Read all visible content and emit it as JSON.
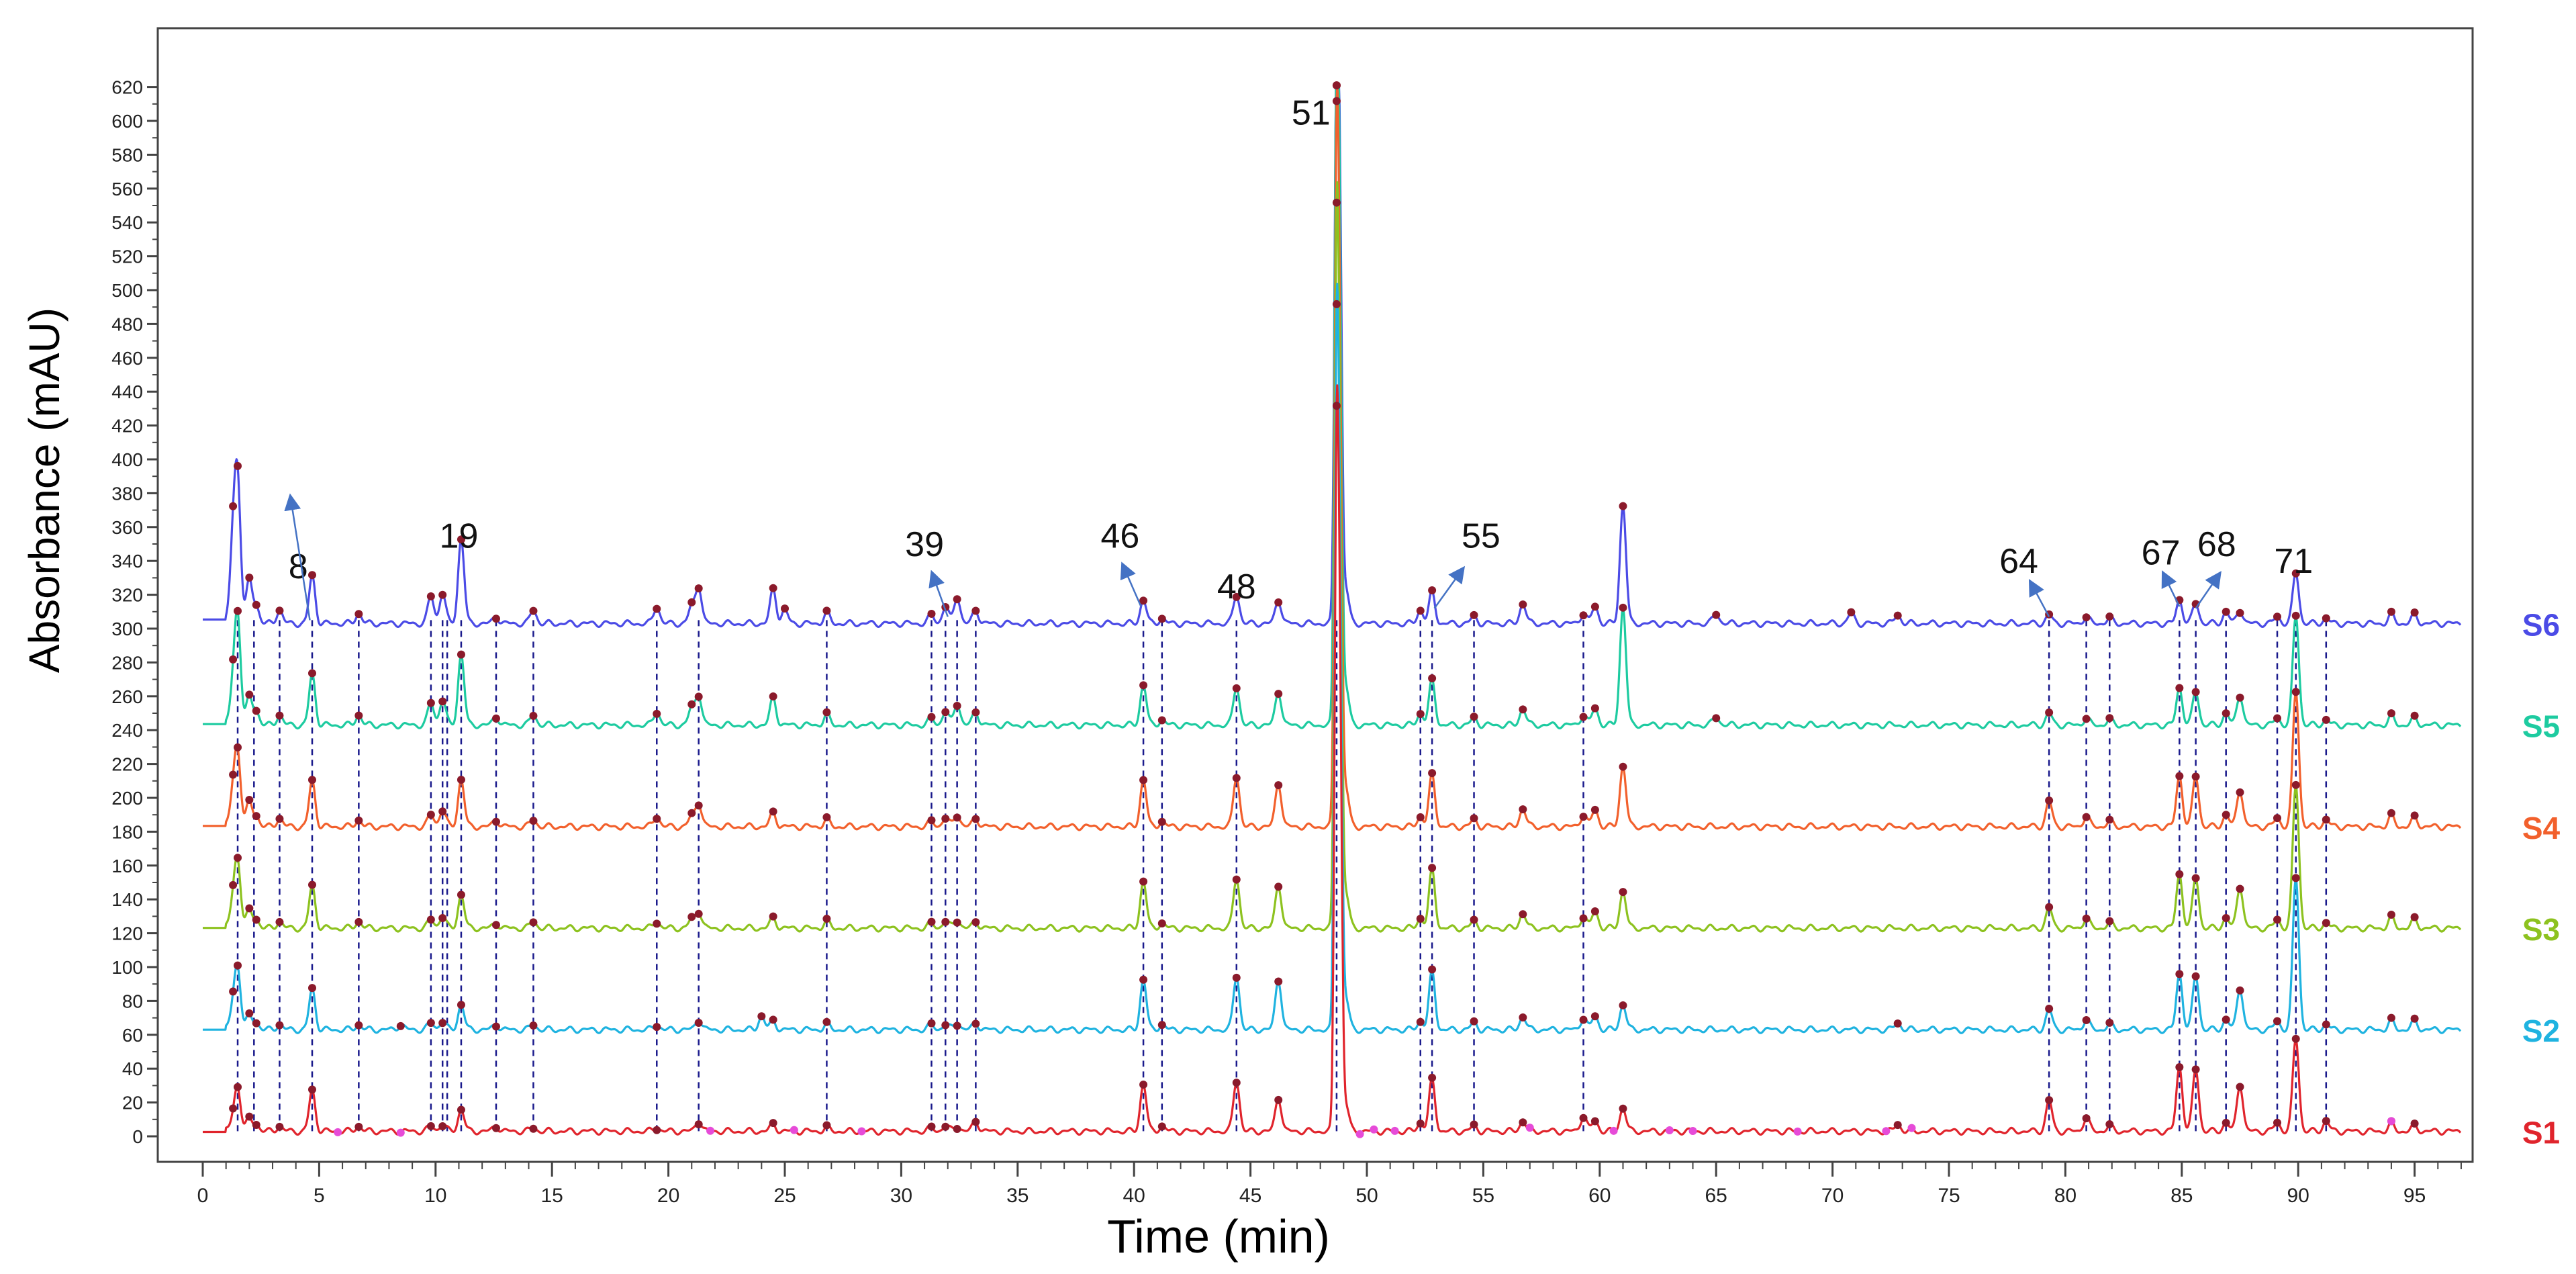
{
  "chart_data": {
    "type": "line",
    "title": "",
    "xlabel": "Time (min)",
    "ylabel": "Absorbance (mAU)",
    "xlim": [
      0,
      98
    ],
    "ylim": [
      -12,
      630
    ],
    "x_ticks": [
      0,
      5,
      10,
      15,
      20,
      25,
      30,
      35,
      40,
      45,
      50,
      55,
      60,
      65,
      70,
      75,
      80,
      85,
      90,
      95
    ],
    "y_ticks": [
      0,
      20,
      40,
      60,
      80,
      100,
      120,
      140,
      160,
      180,
      200,
      220,
      240,
      260,
      280,
      300,
      320,
      340,
      360,
      380,
      400,
      420,
      440,
      460,
      480,
      500,
      520,
      540,
      560,
      580,
      600,
      620
    ],
    "grid": false,
    "legend": "right",
    "reference_lines_x": [
      1.5,
      2.2,
      3.3,
      4.7,
      6.7,
      9.8,
      10.3,
      10.5,
      11.1,
      12.6,
      14.2,
      19.5,
      21.3,
      26.8,
      31.3,
      31.9,
      32.4,
      33.2,
      40.4,
      41.2,
      44.4,
      48.7,
      52.3,
      52.8,
      54.6,
      59.3,
      79.3,
      80.9,
      81.9,
      84.9,
      85.6,
      86.9,
      89.1,
      89.9,
      91.2
    ],
    "annotations": [
      {
        "label": "8",
        "time": 4.7,
        "arrow": true
      },
      {
        "label": "19",
        "time": 11.1,
        "arrow": false
      },
      {
        "label": "39",
        "time": 32.4,
        "arrow": true
      },
      {
        "label": "46",
        "time": 40.4,
        "arrow": true
      },
      {
        "label": "48",
        "time": 44.4,
        "arrow": false
      },
      {
        "label": "51",
        "time": 48.7,
        "arrow": false
      },
      {
        "label": "55",
        "time": 52.8,
        "arrow": true
      },
      {
        "label": "64",
        "time": 79.3,
        "arrow": true
      },
      {
        "label": "67",
        "time": 84.9,
        "arrow": true
      },
      {
        "label": "68",
        "time": 85.6,
        "arrow": true
      },
      {
        "label": "71",
        "time": 89.9,
        "arrow": false
      }
    ],
    "series": [
      {
        "name": "S6",
        "color": "#4B4BE6",
        "baseline": 303,
        "peaks": [
          [
            1.3,
            45
          ],
          [
            1.5,
            80
          ],
          [
            2.0,
            25
          ],
          [
            2.3,
            10
          ],
          [
            3.3,
            8
          ],
          [
            4.7,
            28
          ],
          [
            6.7,
            6
          ],
          [
            9.8,
            16
          ],
          [
            10.3,
            18
          ],
          [
            11.1,
            50
          ],
          [
            12.6,
            4
          ],
          [
            14.2,
            8
          ],
          [
            19.5,
            10
          ],
          [
            21.0,
            10
          ],
          [
            21.3,
            22
          ],
          [
            24.5,
            20
          ],
          [
            25.0,
            8
          ],
          [
            26.8,
            6
          ],
          [
            31.3,
            5
          ],
          [
            31.9,
            10
          ],
          [
            32.4,
            16
          ],
          [
            33.2,
            8
          ],
          [
            40.4,
            14
          ],
          [
            41.2,
            3
          ],
          [
            44.4,
            17
          ],
          [
            46.2,
            14
          ],
          [
            48.7,
            320
          ],
          [
            48.85,
            190
          ],
          [
            49.1,
            20
          ],
          [
            52.3,
            8
          ],
          [
            52.8,
            18
          ],
          [
            54.6,
            4
          ],
          [
            56.7,
            12
          ],
          [
            59.3,
            6
          ],
          [
            59.8,
            10
          ],
          [
            61.0,
            70
          ],
          [
            65.0,
            6
          ],
          [
            70.8,
            6
          ],
          [
            72.8,
            5
          ],
          [
            79.3,
            5
          ],
          [
            80.9,
            4
          ],
          [
            81.9,
            3
          ],
          [
            84.9,
            14
          ],
          [
            85.6,
            12
          ],
          [
            86.9,
            7
          ],
          [
            87.5,
            8
          ],
          [
            89.1,
            4
          ],
          [
            89.9,
            30
          ],
          [
            91.2,
            3
          ],
          [
            94.0,
            5
          ],
          [
            95.0,
            5
          ]
        ]
      },
      {
        "name": "S5",
        "color": "#1DCBA0",
        "baseline": 243,
        "peaks": [
          [
            1.3,
            20
          ],
          [
            1.5,
            62
          ],
          [
            2.0,
            16
          ],
          [
            2.3,
            8
          ],
          [
            3.3,
            6
          ],
          [
            4.7,
            30
          ],
          [
            6.7,
            6
          ],
          [
            9.8,
            13
          ],
          [
            10.3,
            15
          ],
          [
            11.1,
            42
          ],
          [
            12.6,
            5
          ],
          [
            14.2,
            6
          ],
          [
            19.5,
            8
          ],
          [
            21.0,
            10
          ],
          [
            21.3,
            18
          ],
          [
            24.5,
            16
          ],
          [
            26.8,
            6
          ],
          [
            31.3,
            4
          ],
          [
            31.9,
            8
          ],
          [
            32.4,
            13
          ],
          [
            33.2,
            8
          ],
          [
            40.4,
            24
          ],
          [
            41.2,
            3
          ],
          [
            44.4,
            23
          ],
          [
            46.2,
            20
          ],
          [
            48.7,
            380
          ],
          [
            48.85,
            200
          ],
          [
            49.1,
            22
          ],
          [
            52.3,
            7
          ],
          [
            52.8,
            26
          ],
          [
            54.6,
            4
          ],
          [
            56.7,
            10
          ],
          [
            59.3,
            6
          ],
          [
            59.8,
            10
          ],
          [
            61.0,
            70
          ],
          [
            65.0,
            5
          ],
          [
            79.3,
            7
          ],
          [
            80.9,
            4
          ],
          [
            81.9,
            3
          ],
          [
            84.9,
            22
          ],
          [
            85.6,
            20
          ],
          [
            86.9,
            7
          ],
          [
            87.5,
            18
          ],
          [
            89.1,
            4
          ],
          [
            89.9,
            65
          ],
          [
            91.2,
            3
          ],
          [
            94.0,
            5
          ],
          [
            95.0,
            4
          ]
        ]
      },
      {
        "name": "S4",
        "color": "#F2602C",
        "baseline": 183,
        "peaks": [
          [
            1.3,
            18
          ],
          [
            1.5,
            42
          ],
          [
            2.0,
            14
          ],
          [
            2.3,
            6
          ],
          [
            3.3,
            5
          ],
          [
            4.7,
            27
          ],
          [
            6.7,
            4
          ],
          [
            9.8,
            7
          ],
          [
            10.3,
            10
          ],
          [
            11.1,
            28
          ],
          [
            12.6,
            4
          ],
          [
            14.2,
            4
          ],
          [
            19.5,
            6
          ],
          [
            21.0,
            6
          ],
          [
            21.3,
            14
          ],
          [
            24.5,
            8
          ],
          [
            26.8,
            4
          ],
          [
            31.3,
            3
          ],
          [
            31.9,
            5
          ],
          [
            32.4,
            7
          ],
          [
            33.2,
            5
          ],
          [
            40.4,
            28
          ],
          [
            41.2,
            3
          ],
          [
            44.4,
            30
          ],
          [
            46.2,
            26
          ],
          [
            48.7,
            380
          ],
          [
            48.85,
            200
          ],
          [
            49.1,
            22
          ],
          [
            52.3,
            6
          ],
          [
            52.8,
            30
          ],
          [
            54.6,
            4
          ],
          [
            56.7,
            11
          ],
          [
            59.3,
            7
          ],
          [
            59.8,
            10
          ],
          [
            61.0,
            36
          ],
          [
            79.3,
            15
          ],
          [
            80.9,
            6
          ],
          [
            81.9,
            3
          ],
          [
            84.9,
            30
          ],
          [
            85.6,
            30
          ],
          [
            86.9,
            7
          ],
          [
            87.5,
            22
          ],
          [
            89.1,
            5
          ],
          [
            89.9,
            80
          ],
          [
            91.2,
            4
          ],
          [
            94.0,
            6
          ],
          [
            95.0,
            5
          ]
        ]
      },
      {
        "name": "S3",
        "color": "#8DC21F",
        "baseline": 123,
        "peaks": [
          [
            1.3,
            14
          ],
          [
            1.5,
            38
          ],
          [
            2.0,
            10
          ],
          [
            2.3,
            5
          ],
          [
            3.3,
            4
          ],
          [
            4.7,
            25
          ],
          [
            6.7,
            4
          ],
          [
            9.8,
            5
          ],
          [
            10.3,
            7
          ],
          [
            11.1,
            20
          ],
          [
            12.6,
            3
          ],
          [
            14.2,
            4
          ],
          [
            19.5,
            4
          ],
          [
            21.0,
            5
          ],
          [
            21.3,
            10
          ],
          [
            24.5,
            6
          ],
          [
            26.8,
            4
          ],
          [
            31.3,
            3
          ],
          [
            31.9,
            4
          ],
          [
            32.4,
            5
          ],
          [
            33.2,
            4
          ],
          [
            40.4,
            28
          ],
          [
            41.2,
            3
          ],
          [
            44.4,
            30
          ],
          [
            46.2,
            26
          ],
          [
            48.7,
            380
          ],
          [
            48.85,
            200
          ],
          [
            49.1,
            20
          ],
          [
            52.3,
            6
          ],
          [
            52.8,
            34
          ],
          [
            54.6,
            4
          ],
          [
            56.7,
            9
          ],
          [
            59.3,
            7
          ],
          [
            59.8,
            10
          ],
          [
            61.0,
            22
          ],
          [
            79.3,
            12
          ],
          [
            80.9,
            6
          ],
          [
            81.9,
            3
          ],
          [
            84.9,
            32
          ],
          [
            85.6,
            30
          ],
          [
            86.9,
            6
          ],
          [
            87.5,
            25
          ],
          [
            89.1,
            5
          ],
          [
            89.9,
            85
          ],
          [
            91.2,
            3
          ],
          [
            94.0,
            6
          ],
          [
            95.0,
            5
          ]
        ]
      },
      {
        "name": "S2",
        "color": "#1FB3E0",
        "baseline": 63,
        "peaks": [
          [
            1.3,
            12
          ],
          [
            1.5,
            35
          ],
          [
            2.0,
            8
          ],
          [
            2.3,
            4
          ],
          [
            3.3,
            3
          ],
          [
            4.7,
            24
          ],
          [
            6.7,
            3
          ],
          [
            8.5,
            3
          ],
          [
            9.8,
            4
          ],
          [
            10.3,
            5
          ],
          [
            11.1,
            15
          ],
          [
            12.6,
            3
          ],
          [
            14.2,
            3
          ],
          [
            19.5,
            3
          ],
          [
            21.3,
            6
          ],
          [
            24.0,
            8
          ],
          [
            24.5,
            5
          ],
          [
            26.8,
            3
          ],
          [
            31.3,
            3
          ],
          [
            31.9,
            3
          ],
          [
            32.4,
            4
          ],
          [
            33.2,
            4
          ],
          [
            40.4,
            30
          ],
          [
            41.2,
            3
          ],
          [
            44.4,
            32
          ],
          [
            46.2,
            30
          ],
          [
            48.7,
            380
          ],
          [
            48.85,
            200
          ],
          [
            49.1,
            18
          ],
          [
            52.3,
            5
          ],
          [
            52.8,
            34
          ],
          [
            54.6,
            4
          ],
          [
            56.7,
            8
          ],
          [
            59.3,
            7
          ],
          [
            59.8,
            8
          ],
          [
            61.0,
            15
          ],
          [
            72.8,
            4
          ],
          [
            79.3,
            12
          ],
          [
            80.9,
            6
          ],
          [
            81.9,
            3
          ],
          [
            84.9,
            33
          ],
          [
            85.6,
            32
          ],
          [
            86.9,
            6
          ],
          [
            87.5,
            25
          ],
          [
            89.1,
            5
          ],
          [
            89.9,
            90
          ],
          [
            91.2,
            3
          ],
          [
            94.0,
            5
          ],
          [
            95.0,
            5
          ]
        ]
      },
      {
        "name": "S1",
        "color": "#E0242C",
        "baseline": 3,
        "peaks": [
          [
            1.3,
            6
          ],
          [
            1.5,
            25
          ],
          [
            2.0,
            7
          ],
          [
            2.3,
            4
          ],
          [
            3.3,
            3
          ],
          [
            4.7,
            24
          ],
          [
            6.7,
            3
          ],
          [
            9.8,
            3
          ],
          [
            10.3,
            4
          ],
          [
            11.1,
            13
          ],
          [
            12.6,
            3
          ],
          [
            14.2,
            2
          ],
          [
            19.5,
            2
          ],
          [
            21.3,
            6
          ],
          [
            24.5,
            4
          ],
          [
            26.8,
            2
          ],
          [
            31.3,
            2
          ],
          [
            31.9,
            3
          ],
          [
            32.4,
            3
          ],
          [
            33.2,
            6
          ],
          [
            40.4,
            28
          ],
          [
            41.2,
            3
          ],
          [
            44.4,
            30
          ],
          [
            46.2,
            20
          ],
          [
            48.7,
            380
          ],
          [
            48.85,
            200
          ],
          [
            49.1,
            15
          ],
          [
            52.3,
            5
          ],
          [
            52.8,
            30
          ],
          [
            54.6,
            3
          ],
          [
            56.7,
            6
          ],
          [
            59.3,
            9
          ],
          [
            59.8,
            6
          ],
          [
            61.0,
            14
          ],
          [
            72.8,
            4
          ],
          [
            79.3,
            18
          ],
          [
            80.9,
            8
          ],
          [
            81.9,
            3
          ],
          [
            84.9,
            38
          ],
          [
            85.6,
            37
          ],
          [
            86.9,
            5
          ],
          [
            87.5,
            28
          ],
          [
            89.1,
            5
          ],
          [
            89.9,
            55
          ],
          [
            91.2,
            6
          ],
          [
            94.0,
            4
          ],
          [
            95.0,
            3
          ]
        ]
      }
    ]
  }
}
